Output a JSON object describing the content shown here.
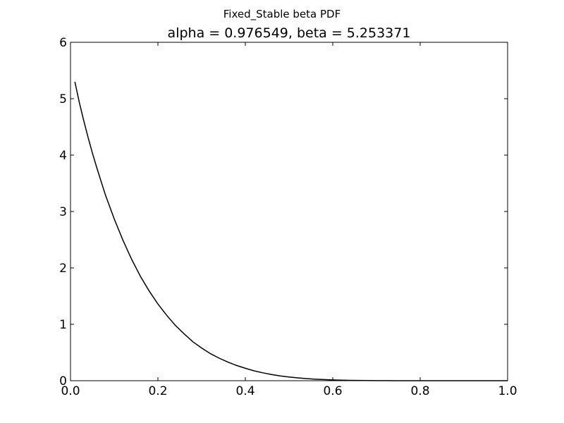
{
  "figure": {
    "suptitle": "Fixed_Stable beta PDF"
  },
  "chart_data": {
    "type": "line",
    "title": "alpha = 0.976549, beta = 5.253371",
    "xlabel": "",
    "ylabel": "",
    "xlim": [
      0.0,
      1.0
    ],
    "ylim": [
      0,
      6
    ],
    "xticks": [
      "0.0",
      "0.2",
      "0.4",
      "0.6",
      "0.8",
      "1.0"
    ],
    "yticks": [
      "0",
      "1",
      "2",
      "3",
      "4",
      "5",
      "6"
    ],
    "grid": false,
    "legend": "none",
    "line_color": "#000000",
    "series": [
      {
        "x": [
          0.01,
          0.02,
          0.03,
          0.04,
          0.05,
          0.06,
          0.08,
          0.1,
          0.12,
          0.14,
          0.16,
          0.18,
          0.2,
          0.22,
          0.24,
          0.26,
          0.28,
          0.3,
          0.32,
          0.34,
          0.36,
          0.38,
          0.4,
          0.42,
          0.44,
          0.46,
          0.48,
          0.5,
          0.52,
          0.54,
          0.56,
          0.58,
          0.6,
          0.62,
          0.64,
          0.66,
          0.68,
          0.7,
          0.72,
          0.74,
          0.76,
          0.78,
          0.8,
          0.85,
          0.9,
          0.95,
          1.0
        ],
        "y": [
          5.3,
          4.94,
          4.62,
          4.32,
          4.04,
          3.78,
          3.29,
          2.87,
          2.49,
          2.15,
          1.85,
          1.59,
          1.36,
          1.16,
          0.98,
          0.83,
          0.69,
          0.58,
          0.48,
          0.4,
          0.33,
          0.27,
          0.22,
          0.175,
          0.14,
          0.11,
          0.085,
          0.065,
          0.05,
          0.037,
          0.027,
          0.02,
          0.014,
          0.01,
          0.007,
          0.005,
          0.003,
          0.002,
          0.0012,
          0.0007,
          0.0004,
          0.0002,
          0.0001,
          0.0,
          0.0,
          0.0,
          0.0
        ]
      }
    ]
  }
}
